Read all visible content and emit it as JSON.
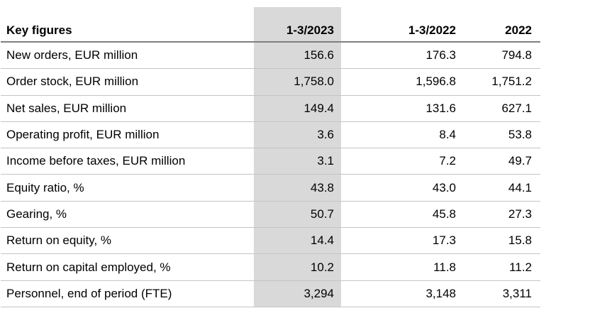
{
  "table": {
    "title": "Key figures",
    "highlight_color": "#d9d9d9",
    "header_underline_color": "#7f7f7f",
    "row_divider_color": "#c4c4c4",
    "columns": [
      "1-3/2023",
      "1-3/2022",
      "2022"
    ],
    "highlighted_column": "1-3/2023",
    "rows": [
      {
        "label": "New orders, EUR million",
        "values": [
          "156.6",
          "176.3",
          "794.8"
        ]
      },
      {
        "label": "Order stock, EUR million",
        "values": [
          "1,758.0",
          "1,596.8",
          "1,751.2"
        ]
      },
      {
        "label": "Net sales, EUR million",
        "values": [
          "149.4",
          "131.6",
          "627.1"
        ]
      },
      {
        "label": "Operating profit, EUR million",
        "values": [
          "3.6",
          "8.4",
          "53.8"
        ]
      },
      {
        "label": "Income before taxes, EUR million",
        "values": [
          "3.1",
          "7.2",
          "49.7"
        ]
      },
      {
        "label": "Equity ratio, %",
        "values": [
          "43.8",
          "43.0",
          "44.1"
        ]
      },
      {
        "label": "Gearing, %",
        "values": [
          "50.7",
          "45.8",
          "27.3"
        ]
      },
      {
        "label": "Return on equity, %",
        "values": [
          "14.4",
          "17.3",
          "15.8"
        ]
      },
      {
        "label": "Return on capital employed, %",
        "values": [
          "10.2",
          "11.8",
          "11.2"
        ]
      },
      {
        "label": "Personnel, end of period (FTE)",
        "values": [
          "3,294",
          "3,148",
          "3,311"
        ]
      }
    ]
  }
}
